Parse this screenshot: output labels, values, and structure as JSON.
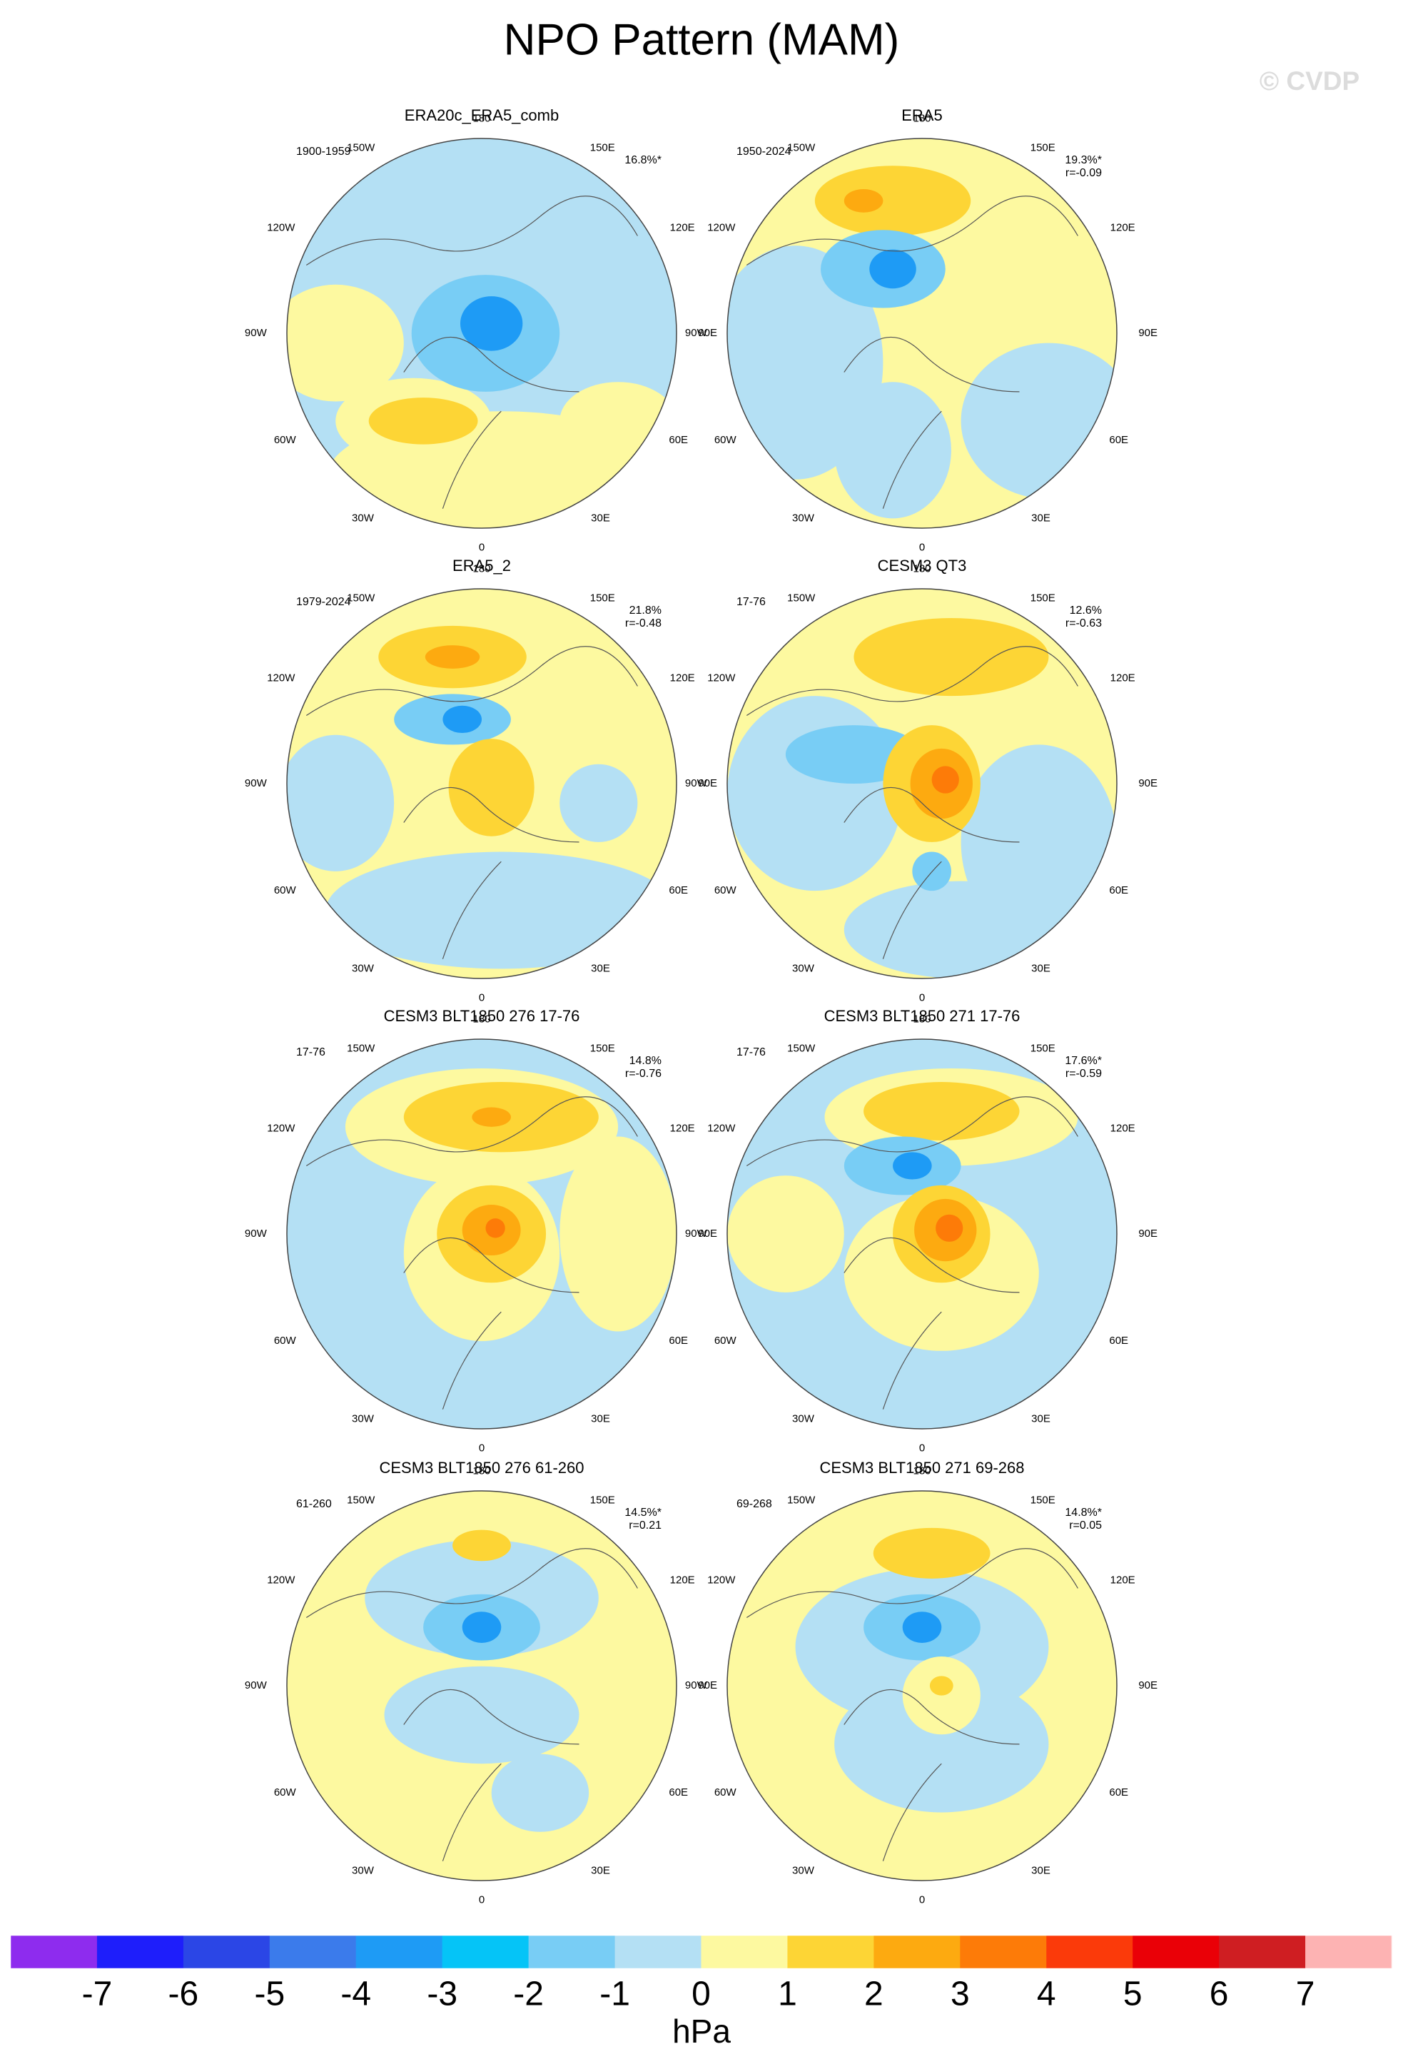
{
  "title": "NPO Pattern (MAM)",
  "watermark": "© CVDP",
  "longitude_labels": [
    "180",
    "150W",
    "150E",
    "120W",
    "120E",
    "90W",
    "90E",
    "60W",
    "60E",
    "30W",
    "30E",
    "0"
  ],
  "panels": [
    {
      "title": "ERA20c_ERA5_comb",
      "period": "1900-1959",
      "pct": "16.8%*",
      "r": null
    },
    {
      "title": "ERA5",
      "period": "1950-2024",
      "pct": "19.3%*",
      "r": "r=-0.09"
    },
    {
      "title": "ERA5_2",
      "period": "1979-2024",
      "pct": "21.8%",
      "r": "r=-0.48"
    },
    {
      "title": "CESM3 QT3",
      "period": "17-76",
      "pct": "12.6%",
      "r": "r=-0.63"
    },
    {
      "title": "CESM3 BLT1850 276 17-76",
      "period": "17-76",
      "pct": "14.8%",
      "r": "r=-0.76"
    },
    {
      "title": "CESM3 BLT1850 271 17-76",
      "period": "17-76",
      "pct": "17.6%*",
      "r": "r=-0.59"
    },
    {
      "title": "CESM3 BLT1850 276 61-260",
      "period": "61-260",
      "pct": "14.5%*",
      "r": "r=0.21"
    },
    {
      "title": "CESM3 BLT1850 271 69-268",
      "period": "69-268",
      "pct": "14.8%*",
      "r": "r=0.05"
    }
  ],
  "colorbar": {
    "ticks": [
      -7,
      -6,
      -5,
      -4,
      -3,
      -2,
      -1,
      0,
      1,
      2,
      3,
      4,
      5,
      6,
      7
    ],
    "colors": [
      "#8e2cee",
      "#1e1efb",
      "#2b46e6",
      "#3b7beb",
      "#1e9bf5",
      "#05c4f7",
      "#78cdf5",
      "#b4e0f4",
      "#fdf9a0",
      "#fdd535",
      "#fdaa10",
      "#fd7b08",
      "#fb3a0a",
      "#ea0007",
      "#cf1e22",
      "#fdb3b3"
    ],
    "unit": "hPa"
  }
}
